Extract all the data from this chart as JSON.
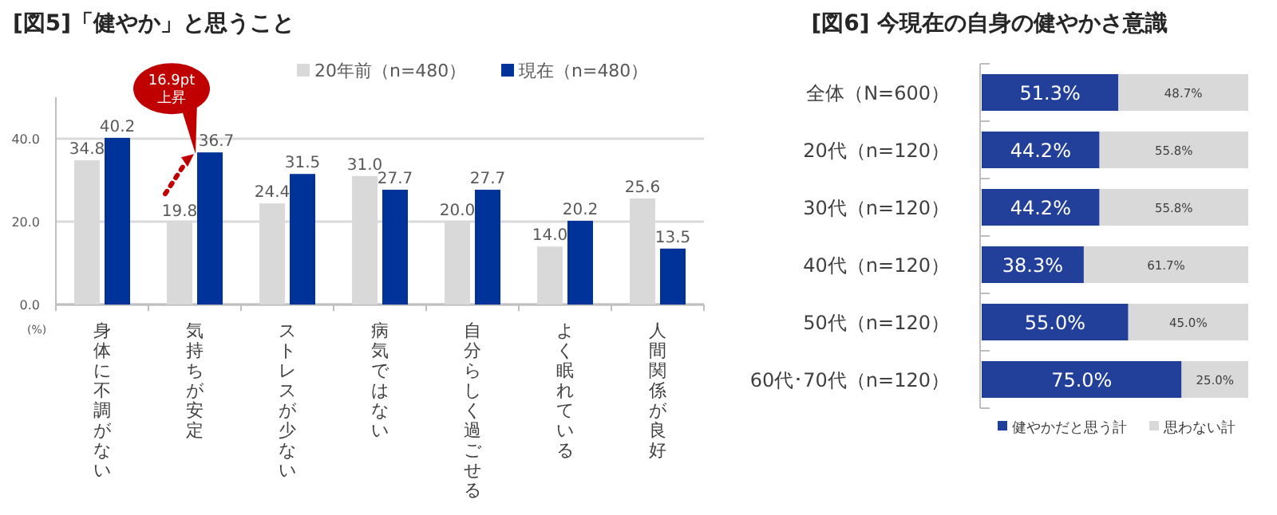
{
  "chart_data": [
    {
      "type": "bar",
      "title": "[図5]「健やか」と思うこと",
      "categories": [
        "身体に不調がない",
        "気持ちが安定",
        "ストレスが少ない",
        "病気ではない",
        "自分らしく過ごせる",
        "よく眠れている",
        "人間関係が良好"
      ],
      "series": [
        {
          "name": "20年前（n=480）",
          "color": "#d9d9d9",
          "values": [
            34.8,
            19.8,
            24.4,
            31.0,
            20.0,
            14.0,
            25.6
          ],
          "value_labels": [
            "34.8",
            "19.8",
            "24.4",
            "31.0",
            "20.0",
            "14.0",
            "25.6"
          ]
        },
        {
          "name": "現在（n=480）",
          "color": "#003399",
          "values": [
            40.2,
            36.7,
            31.5,
            27.7,
            27.7,
            20.2,
            13.5
          ],
          "value_labels": [
            "40.2",
            "36.7",
            "31.5",
            "27.7",
            "27.7",
            "20.2",
            "13.5"
          ]
        }
      ],
      "ylim": [
        0,
        50
      ],
      "yticks": [
        {
          "value": 0,
          "label": "0.0"
        },
        {
          "value": 20,
          "label": "20.0"
        },
        {
          "value": 40,
          "label": "40.0"
        }
      ],
      "grid": "y",
      "legend": "top right",
      "annotations": [
        {
          "text": "16.9pt 上昇",
          "x": "気持ちが安定",
          "y": 36.7
        },
        "(%)"
      ]
    },
    {
      "type": "bar",
      "orientation": "horizontal",
      "stacked": true,
      "title": "[図6] 今現在の自身の健やかさ意識",
      "categories": [
        "全体（N=600）",
        "20代（n=120）",
        "30代（n=120）",
        "40代（n=120）",
        "50代（n=120）",
        "60代･70代（n=120）"
      ],
      "series": [
        {
          "name": "健やかだと思う計",
          "color": "#22409a",
          "values": [
            51.3,
            44.2,
            44.2,
            38.3,
            55.0,
            75.0
          ],
          "value_labels": [
            "51.3%",
            "44.2%",
            "44.2%",
            "38.3%",
            "55.0%",
            "75.0%"
          ]
        },
        {
          "name": "思わない計",
          "color": "#d9d9d9",
          "values": [
            48.7,
            55.8,
            55.8,
            61.7,
            45.0,
            25.0
          ],
          "value_labels": [
            "48.7%",
            "55.8%",
            "55.8%",
            "61.7%",
            "45.0%",
            "25.0%"
          ]
        }
      ],
      "xlim": [
        0,
        100
      ],
      "tick_labels": "y",
      "legend": "bottom"
    }
  ]
}
